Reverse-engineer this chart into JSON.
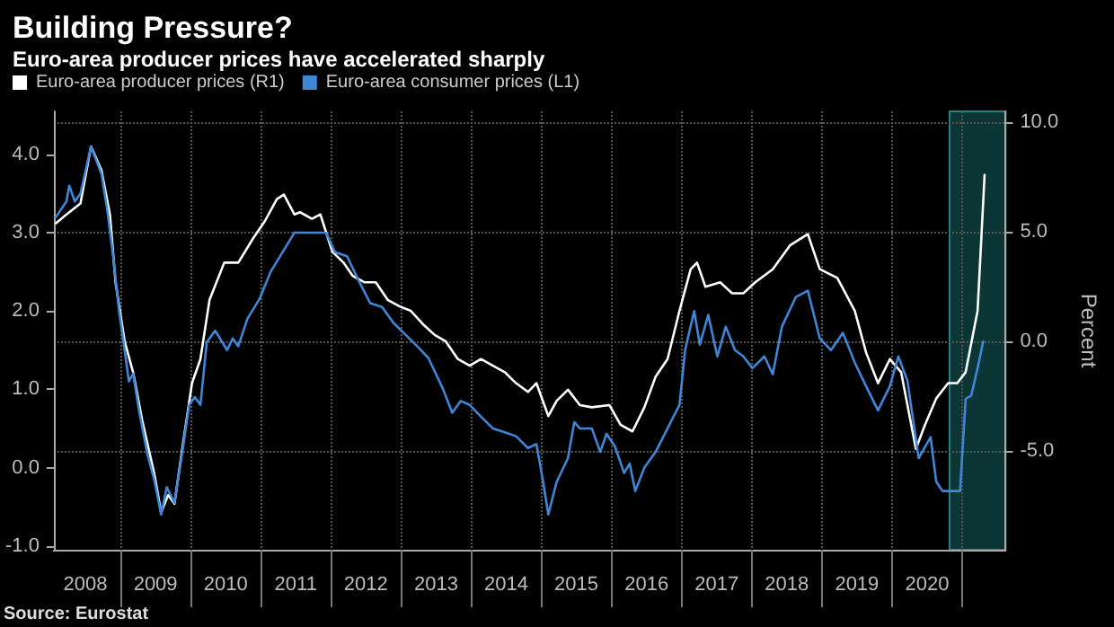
{
  "chart_data": {
    "type": "line",
    "title": "Building Pressure?",
    "subtitle": "Euro-area producer prices have accelerated sharply",
    "y2label": "Percent",
    "annotations": [
      "Source: Eurostat"
    ],
    "xlim": [
      2008.05,
      2021.62
    ],
    "xticks": [
      {
        "value": 2009,
        "label": null
      },
      {
        "value": 2010,
        "label": null
      },
      {
        "value": 2011,
        "label": null
      },
      {
        "value": 2012,
        "label": null
      },
      {
        "value": 2013,
        "label": null
      },
      {
        "value": 2014,
        "label": null
      },
      {
        "value": 2015,
        "label": null
      },
      {
        "value": 2016,
        "label": null
      },
      {
        "value": 2017,
        "label": null
      },
      {
        "value": 2018,
        "label": null
      },
      {
        "value": 2019,
        "label": null
      },
      {
        "value": 2020,
        "label": null
      },
      {
        "value": 2021,
        "label": null
      },
      {
        "value": 2008.5,
        "label": "2008"
      },
      {
        "value": 2009.5,
        "label": "2009"
      },
      {
        "value": 2010.5,
        "label": "2010"
      },
      {
        "value": 2011.5,
        "label": "2011"
      },
      {
        "value": 2012.5,
        "label": "2012"
      },
      {
        "value": 2013.5,
        "label": "2013"
      },
      {
        "value": 2014.5,
        "label": "2014"
      },
      {
        "value": 2015.5,
        "label": "2015"
      },
      {
        "value": 2016.5,
        "label": "2016"
      },
      {
        "value": 2017.5,
        "label": "2017"
      },
      {
        "value": 2018.5,
        "label": "2018"
      },
      {
        "value": 2019.5,
        "label": "2019"
      },
      {
        "value": 2020.5,
        "label": "2020"
      }
    ],
    "ylim": [
      -1.05,
      4.55
    ],
    "yticks": [
      {
        "value": -1,
        "label": "-1.0"
      },
      {
        "value": 0,
        "label": "0.0"
      },
      {
        "value": 1,
        "label": "1.0"
      },
      {
        "value": 2,
        "label": "2.0"
      },
      {
        "value": 3,
        "label": "3.0"
      },
      {
        "value": 4,
        "label": "4.0"
      }
    ],
    "y2lim": [
      -9.5,
      10.5
    ],
    "y2ticks": [
      {
        "value": -5,
        "label": "-5.0"
      },
      {
        "value": 0,
        "label": "0.0"
      },
      {
        "value": 5,
        "label": "5.0"
      },
      {
        "value": 10,
        "label": "10.0"
      }
    ],
    "grid": true,
    "legend": "top left",
    "marker": "none",
    "line_style": "solid",
    "bands": [
      {
        "axis": "x",
        "from": 2020.82,
        "to": 2021.62,
        "color": "#0c3636"
      }
    ],
    "series": [
      {
        "name": "Euro-area producer prices (R1)",
        "color": "#ffffff",
        "axis": "y2",
        "x": [
          2008.08,
          2008.23,
          2008.43,
          2008.58,
          2008.73,
          2008.85,
          2008.93,
          2009.06,
          2009.18,
          2009.31,
          2009.48,
          2009.58,
          2009.68,
          2009.77,
          2009.89,
          2010.02,
          2010.14,
          2010.27,
          2010.48,
          2010.68,
          2010.89,
          2011.06,
          2011.23,
          2011.33,
          2011.48,
          2011.56,
          2011.73,
          2011.85,
          2012.02,
          2012.18,
          2012.31,
          2012.48,
          2012.64,
          2012.81,
          2012.98,
          2013.14,
          2013.31,
          2013.48,
          2013.64,
          2013.81,
          2013.98,
          2014.14,
          2014.31,
          2014.48,
          2014.64,
          2014.81,
          2014.93,
          2015.1,
          2015.22,
          2015.38,
          2015.55,
          2015.72,
          2015.97,
          2016.13,
          2016.3,
          2016.47,
          2016.63,
          2016.8,
          2016.97,
          2017.13,
          2017.22,
          2017.34,
          2017.55,
          2017.72,
          2017.88,
          2018.05,
          2018.3,
          2018.55,
          2018.8,
          2018.97,
          2019.22,
          2019.47,
          2019.63,
          2019.8,
          2019.97,
          2020.13,
          2020.34,
          2020.47,
          2020.63,
          2020.8,
          2020.93,
          2021.05,
          2021.22,
          2021.32
        ],
        "values": [
          5.4,
          5.8,
          6.3,
          8.9,
          7.8,
          5.8,
          2.7,
          0,
          -1.4,
          -3.6,
          -6.0,
          -7.8,
          -7.0,
          -7.4,
          -4.7,
          -1.9,
          -0.8,
          1.9,
          3.6,
          3.6,
          4.7,
          5.5,
          6.5,
          6.7,
          5.8,
          5.9,
          5.6,
          5.8,
          4.1,
          3.6,
          3.0,
          2.7,
          2.7,
          1.9,
          1.6,
          1.4,
          0.8,
          0.3,
          0,
          -0.8,
          -1.1,
          -0.8,
          -1.1,
          -1.4,
          -1.9,
          -2.3,
          -1.9,
          -3.4,
          -2.7,
          -2.2,
          -2.9,
          -3.0,
          -2.9,
          -3.8,
          -4.1,
          -3.0,
          -1.6,
          -0.8,
          1.4,
          3.3,
          3.6,
          2.5,
          2.7,
          2.2,
          2.2,
          2.7,
          3.3,
          4.4,
          4.9,
          3.3,
          2.9,
          1.4,
          -0.5,
          -1.9,
          -0.8,
          -1.4,
          -4.9,
          -3.8,
          -2.6,
          -1.9,
          -1.9,
          -1.4,
          1.4,
          7.6
        ]
      },
      {
        "name": "Euro-area consumer prices (L1)",
        "color": "#3f86d6",
        "x": [
          2008.08,
          2008.23,
          2008.27,
          2008.35,
          2008.43,
          2008.58,
          2008.73,
          2008.81,
          2008.89,
          2008.98,
          2009.06,
          2009.12,
          2009.18,
          2009.27,
          2009.39,
          2009.48,
          2009.58,
          2009.66,
          2009.77,
          2009.89,
          2009.98,
          2010.06,
          2010.14,
          2010.23,
          2010.35,
          2010.52,
          2010.6,
          2010.68,
          2010.81,
          2010.98,
          2011.14,
          2011.31,
          2011.48,
          2011.73,
          2011.93,
          2012.06,
          2012.23,
          2012.39,
          2012.56,
          2012.73,
          2012.89,
          2013.06,
          2013.23,
          2013.39,
          2013.6,
          2013.73,
          2013.85,
          2013.98,
          2014.14,
          2014.31,
          2014.48,
          2014.64,
          2014.81,
          2014.93,
          2015.02,
          2015.1,
          2015.22,
          2015.38,
          2015.47,
          2015.55,
          2015.72,
          2015.84,
          2015.93,
          2016.05,
          2016.18,
          2016.26,
          2016.34,
          2016.47,
          2016.63,
          2016.8,
          2016.97,
          2017.05,
          2017.18,
          2017.26,
          2017.38,
          2017.51,
          2017.63,
          2017.76,
          2017.88,
          2018.01,
          2018.18,
          2018.3,
          2018.43,
          2018.63,
          2018.8,
          2018.97,
          2019.13,
          2019.3,
          2019.47,
          2019.63,
          2019.8,
          2019.97,
          2020.09,
          2020.22,
          2020.38,
          2020.55,
          2020.63,
          2020.72,
          2020.97,
          2021.05,
          2021.13,
          2021.22,
          2021.3
        ],
        "values": [
          3.2,
          3.4,
          3.6,
          3.4,
          3.5,
          4.1,
          3.75,
          3.3,
          2.75,
          2.0,
          1.5,
          1.1,
          1.2,
          0.7,
          0.15,
          -0.15,
          -0.6,
          -0.25,
          -0.45,
          0.25,
          0.8,
          0.9,
          0.8,
          1.6,
          1.75,
          1.5,
          1.65,
          1.55,
          1.9,
          2.15,
          2.5,
          2.75,
          3.0,
          3.0,
          3.0,
          2.75,
          2.7,
          2.4,
          2.1,
          2.05,
          1.85,
          1.7,
          1.55,
          1.4,
          1.0,
          0.7,
          0.85,
          0.8,
          0.65,
          0.5,
          0.45,
          0.4,
          0.25,
          0.3,
          -0.15,
          -0.6,
          -0.18,
          0.12,
          0.58,
          0.5,
          0.5,
          0.2,
          0.43,
          0.27,
          -0.07,
          0.05,
          -0.3,
          0,
          0.2,
          0.5,
          0.8,
          1.5,
          2.0,
          1.57,
          1.95,
          1.42,
          1.8,
          1.5,
          1.42,
          1.27,
          1.42,
          1.19,
          1.8,
          2.18,
          2.26,
          1.65,
          1.5,
          1.72,
          1.34,
          1.04,
          0.73,
          1.04,
          1.42,
          1.11,
          0.12,
          0.39,
          -0.18,
          -0.3,
          -0.3,
          0.88,
          0.92,
          1.27,
          1.61
        ]
      }
    ]
  }
}
